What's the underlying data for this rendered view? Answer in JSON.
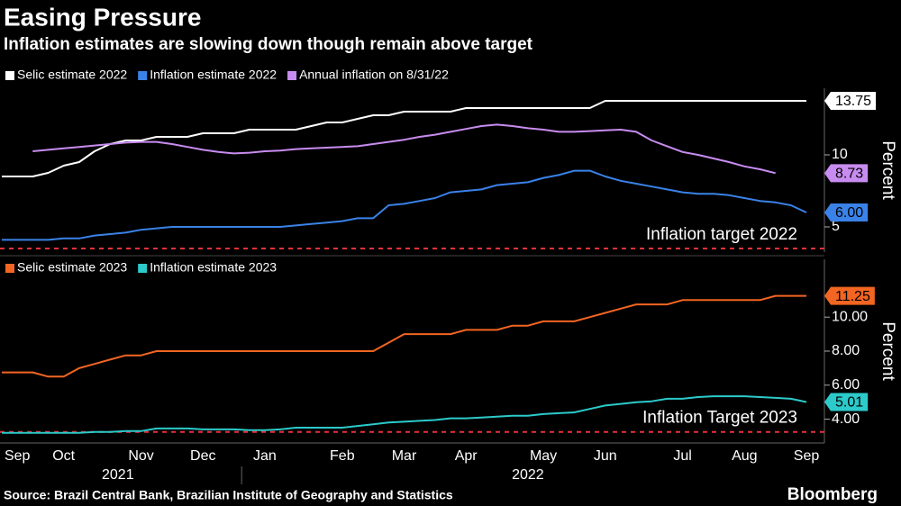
{
  "chart_data": [
    {
      "type": "line",
      "title": "Easing Pressure",
      "subtitle": "Inflation estimates are slowing down though remain above target",
      "y_label": "Percent",
      "ylim": [
        3.25,
        14.625
      ],
      "yticks": [
        5,
        10
      ],
      "target": {
        "label": "Inflation target 2022",
        "value": 3.5,
        "color": "#e8333a"
      },
      "series": [
        {
          "name": "Selic estimate 2022",
          "color": "#ffffff",
          "values": [
            8.5,
            8.5,
            8.5,
            8.75,
            9.25,
            9.5,
            10.25,
            10.75,
            11,
            11,
            11.25,
            11.25,
            11.25,
            11.5,
            11.5,
            11.5,
            11.75,
            11.75,
            11.75,
            11.75,
            12,
            12.25,
            12.25,
            12.5,
            12.75,
            12.75,
            13,
            13,
            13,
            13,
            13.25,
            13.25,
            13.25,
            13.25,
            13.25,
            13.25,
            13.25,
            13.25,
            13.25,
            13.75,
            13.75,
            13.75,
            13.75,
            13.75,
            13.75,
            13.75,
            13.75,
            13.75,
            13.75,
            13.75,
            13.75,
            13.75,
            13.75
          ],
          "value_labels": [
            null,
            null,
            null,
            null,
            null,
            null,
            null,
            null,
            null,
            null,
            null,
            null,
            null,
            null,
            null,
            null,
            null,
            null,
            null,
            null,
            null,
            null,
            null,
            null,
            null,
            null,
            null,
            null,
            null,
            null,
            null,
            null,
            null,
            null,
            null,
            null,
            null,
            null,
            null,
            null,
            null,
            null,
            null,
            null,
            null,
            null,
            null,
            null,
            null,
            null,
            null,
            null,
            "13.75"
          ]
        },
        {
          "name": "Inflation estimate 2022",
          "color": "#3a82e8",
          "values": [
            4.1,
            4.1,
            4.1,
            4.1,
            4.2,
            4.2,
            4.4,
            4.5,
            4.6,
            4.8,
            4.9,
            5,
            5,
            5,
            5,
            5,
            5,
            5,
            5,
            5.1,
            5.2,
            5.3,
            5.4,
            5.6,
            5.6,
            6.5,
            6.6,
            6.8,
            7.0,
            7.4,
            7.5,
            7.6,
            7.9,
            8.0,
            8.1,
            8.4,
            8.6,
            8.9,
            8.9,
            8.5,
            8.2,
            8.0,
            7.8,
            7.6,
            7.4,
            7.3,
            7.3,
            7.2,
            7.0,
            6.8,
            6.7,
            6.5,
            6.0
          ],
          "value_labels": [
            null,
            null,
            null,
            null,
            null,
            null,
            null,
            null,
            null,
            null,
            null,
            null,
            null,
            null,
            null,
            null,
            null,
            null,
            null,
            null,
            null,
            null,
            null,
            null,
            null,
            null,
            null,
            null,
            null,
            null,
            null,
            null,
            null,
            null,
            null,
            null,
            null,
            null,
            null,
            null,
            null,
            null,
            null,
            null,
            null,
            null,
            null,
            null,
            null,
            null,
            null,
            null,
            "6.00"
          ]
        },
        {
          "name": "Annual inflation on 8/31/22",
          "color": "#c88cf0",
          "values": [
            null,
            null,
            10.25,
            10.35,
            10.45,
            10.55,
            10.65,
            10.75,
            10.85,
            10.9,
            10.9,
            10.75,
            10.55,
            10.35,
            10.2,
            10.1,
            10.15,
            10.25,
            10.3,
            10.4,
            10.45,
            10.5,
            10.55,
            10.6,
            10.75,
            10.9,
            11.05,
            11.25,
            11.4,
            11.6,
            11.8,
            12,
            12.1,
            12.0,
            11.85,
            11.75,
            11.6,
            11.6,
            11.65,
            11.7,
            11.75,
            11.6,
            11.0,
            10.6,
            10.2,
            10.0,
            9.75,
            9.5,
            9.2,
            9.0,
            8.73,
            null,
            null
          ],
          "value_labels": [
            null,
            null,
            null,
            null,
            null,
            null,
            null,
            null,
            null,
            null,
            null,
            null,
            null,
            null,
            null,
            null,
            null,
            null,
            null,
            null,
            null,
            null,
            null,
            null,
            null,
            null,
            null,
            null,
            null,
            null,
            null,
            null,
            null,
            null,
            null,
            null,
            null,
            null,
            null,
            null,
            null,
            null,
            null,
            null,
            null,
            null,
            null,
            null,
            null,
            null,
            "8.73",
            null,
            null
          ]
        }
      ]
    },
    {
      "type": "line",
      "y_label": "Percent",
      "ylim": [
        2.6,
        13.4
      ],
      "yticks": [
        {
          "value": 4,
          "label": "4.00"
        },
        {
          "value": 6,
          "label": "6.00"
        },
        {
          "value": 8,
          "label": "8.00"
        },
        {
          "value": 10,
          "label": "10.00"
        }
      ],
      "target": {
        "label": "Inflation Target 2023",
        "value": 3.25,
        "color": "#e8333a"
      },
      "categories": [
        null,
        "Sep",
        null,
        null,
        "Oct",
        null,
        null,
        null,
        null,
        "Nov",
        null,
        null,
        null,
        "Dec",
        null,
        null,
        null,
        "Jan",
        null,
        null,
        null,
        null,
        "Feb",
        null,
        null,
        null,
        "Mar",
        null,
        null,
        null,
        "Apr",
        null,
        null,
        null,
        null,
        "May",
        null,
        null,
        null,
        "Jun",
        null,
        null,
        null,
        null,
        "Jul",
        null,
        null,
        null,
        "Aug",
        null,
        null,
        null,
        "Sep"
      ],
      "x_groups": [
        {
          "label": "2021",
          "count": 16
        },
        {
          "label": "2022",
          "count": 37
        }
      ],
      "series": [
        {
          "name": "Selic estimate 2023",
          "color": "#f26522",
          "values": [
            6.75,
            6.75,
            6.75,
            6.5,
            6.5,
            7,
            7.25,
            7.5,
            7.75,
            7.75,
            8,
            8,
            8,
            8,
            8,
            8,
            8,
            8,
            8,
            8,
            8,
            8,
            8,
            8,
            8,
            8.5,
            9,
            9,
            9,
            9,
            9.25,
            9.25,
            9.25,
            9.5,
            9.5,
            9.75,
            9.75,
            9.75,
            10,
            10.25,
            10.5,
            10.75,
            10.75,
            10.75,
            11,
            11,
            11,
            11,
            11,
            11,
            11.25,
            11.25,
            11.25
          ],
          "value_labels": [
            null,
            null,
            null,
            null,
            null,
            null,
            null,
            null,
            null,
            null,
            null,
            null,
            null,
            null,
            null,
            null,
            null,
            null,
            null,
            null,
            null,
            null,
            null,
            null,
            null,
            null,
            null,
            null,
            null,
            null,
            null,
            null,
            null,
            null,
            null,
            null,
            null,
            null,
            null,
            null,
            null,
            null,
            null,
            null,
            null,
            null,
            null,
            null,
            null,
            null,
            null,
            null,
            "11.25"
          ]
        },
        {
          "name": "Inflation estimate 2023",
          "color": "#2ccaca",
          "values": [
            3.2,
            3.2,
            3.2,
            3.2,
            3.2,
            3.2,
            3.25,
            3.25,
            3.3,
            3.3,
            3.45,
            3.45,
            3.45,
            3.4,
            3.4,
            3.4,
            3.35,
            3.35,
            3.4,
            3.5,
            3.5,
            3.5,
            3.5,
            3.6,
            3.7,
            3.8,
            3.85,
            3.9,
            3.95,
            4.05,
            4.05,
            4.1,
            4.15,
            4.2,
            4.2,
            4.3,
            4.35,
            4.4,
            4.6,
            4.8,
            4.9,
            5.0,
            5.05,
            5.2,
            5.2,
            5.3,
            5.35,
            5.35,
            5.35,
            5.3,
            5.25,
            5.2,
            5.01
          ],
          "value_labels": [
            null,
            null,
            null,
            null,
            null,
            null,
            null,
            null,
            null,
            null,
            null,
            null,
            null,
            null,
            null,
            null,
            null,
            null,
            null,
            null,
            null,
            null,
            null,
            null,
            null,
            null,
            null,
            null,
            null,
            null,
            null,
            null,
            null,
            null,
            null,
            null,
            null,
            null,
            null,
            null,
            null,
            null,
            null,
            null,
            null,
            null,
            null,
            null,
            null,
            null,
            null,
            null,
            "5.01"
          ]
        }
      ],
      "source": "Source: Brazil Central Bank, Brazilian Institute of Geography and Statistics",
      "brand": "Bloomberg"
    }
  ]
}
